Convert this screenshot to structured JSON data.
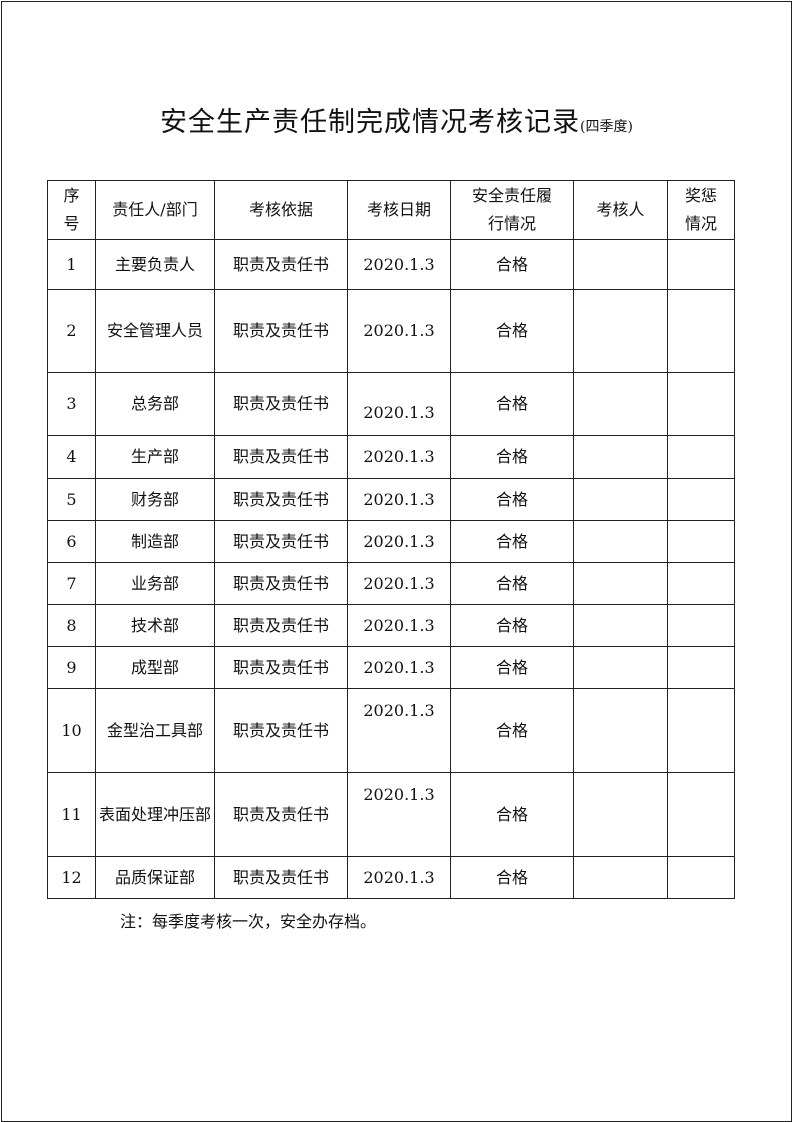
{
  "title": "安全生产责任制完成情况考核记录",
  "subtitle": "(四季度)",
  "headers": [
    "序\n号",
    "责任人/部门",
    "考核依据",
    "考核日期",
    "安全责任履\n行情况",
    "考核人",
    "奖惩\n情况"
  ],
  "rows": [
    {
      "no": "1",
      "dept": "主要负责人",
      "basis": "职责及责任书",
      "date": "2020.1.3",
      "result": "合格",
      "assessor": "",
      "reward": ""
    },
    {
      "no": "2",
      "dept": "安全管理人员",
      "basis": "职责及责任书",
      "date": "2020.1.3",
      "result": "合格",
      "assessor": "",
      "reward": ""
    },
    {
      "no": "3",
      "dept": "总务部",
      "basis": "职责及责任书",
      "date": "2020.1.3",
      "result": "合格",
      "assessor": "",
      "reward": ""
    },
    {
      "no": "4",
      "dept": "生产部",
      "basis": "职责及责任书",
      "date": "2020.1.3",
      "result": "合格",
      "assessor": "",
      "reward": ""
    },
    {
      "no": "5",
      "dept": "财务部",
      "basis": "职责及责任书",
      "date": "2020.1.3",
      "result": "合格",
      "assessor": "",
      "reward": ""
    },
    {
      "no": "6",
      "dept": "制造部",
      "basis": "职责及责任书",
      "date": "2020.1.3",
      "result": "合格",
      "assessor": "",
      "reward": ""
    },
    {
      "no": "7",
      "dept": "业务部",
      "basis": "职责及责任书",
      "date": "2020.1.3",
      "result": "合格",
      "assessor": "",
      "reward": ""
    },
    {
      "no": "8",
      "dept": "技术部",
      "basis": "职责及责任书",
      "date": "2020.1.3",
      "result": "合格",
      "assessor": "",
      "reward": ""
    },
    {
      "no": "9",
      "dept": "成型部",
      "basis": "职责及责任书",
      "date": "2020.1.3",
      "result": "合格",
      "assessor": "",
      "reward": ""
    },
    {
      "no": "10",
      "dept": "金型治工具部",
      "basis": "职责及责任书",
      "date": "2020.1.3",
      "result": "合格",
      "assessor": "",
      "reward": ""
    },
    {
      "no": "11",
      "dept": "表面处理冲压部",
      "basis": "职责及责任书",
      "date": "2020.1.3",
      "result": "合格",
      "assessor": "",
      "reward": ""
    },
    {
      "no": "12",
      "dept": "品质保证部",
      "basis": "职责及责任书",
      "date": "2020.1.3",
      "result": "合格",
      "assessor": "",
      "reward": ""
    }
  ],
  "note": "注：每季度考核一次，安全办存档。"
}
